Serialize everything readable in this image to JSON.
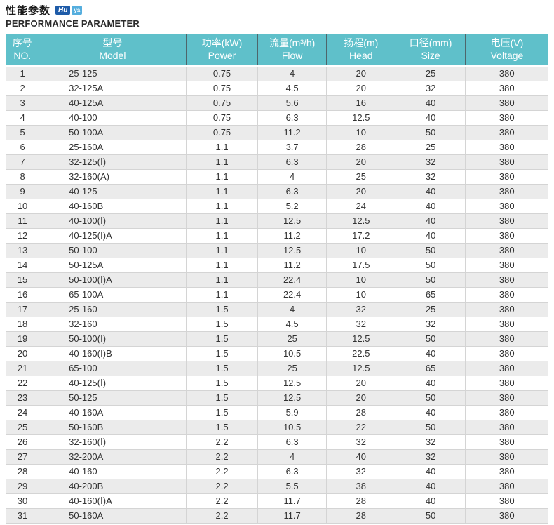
{
  "header": {
    "title_zh": "性能参数",
    "title_en": "PERFORMANCE PARAMETER",
    "logo": {
      "primary": "Hu",
      "secondary": "ya"
    }
  },
  "table": {
    "columns": [
      {
        "zh": "序号",
        "en": "NO."
      },
      {
        "zh": "型号",
        "en": "Model"
      },
      {
        "zh": "功率(kW)",
        "en": "Power"
      },
      {
        "zh": "流量(m³/h)",
        "en": "Flow"
      },
      {
        "zh": "扬程(m)",
        "en": "Head"
      },
      {
        "zh": "口径(mm)",
        "en": "Size"
      },
      {
        "zh": "电压(V)",
        "en": "Voltage"
      }
    ],
    "rows": [
      [
        "1",
        "25-125",
        "0.75",
        "4",
        "20",
        "25",
        "380"
      ],
      [
        "2",
        "32-125A",
        "0.75",
        "4.5",
        "20",
        "32",
        "380"
      ],
      [
        "3",
        "40-125A",
        "0.75",
        "5.6",
        "16",
        "40",
        "380"
      ],
      [
        "4",
        "40-100",
        "0.75",
        "6.3",
        "12.5",
        "40",
        "380"
      ],
      [
        "5",
        "50-100A",
        "0.75",
        "11.2",
        "10",
        "50",
        "380"
      ],
      [
        "6",
        "25-160A",
        "1.1",
        "3.7",
        "28",
        "25",
        "380"
      ],
      [
        "7",
        "32-125(Ⅰ)",
        "1.1",
        "6.3",
        "20",
        "32",
        "380"
      ],
      [
        "8",
        "32-160(A)",
        "1.1",
        "4",
        "25",
        "32",
        "380"
      ],
      [
        "9",
        "40-125",
        "1.1",
        "6.3",
        "20",
        "40",
        "380"
      ],
      [
        "10",
        "40-160B",
        "1.1",
        "5.2",
        "24",
        "40",
        "380"
      ],
      [
        "11",
        "40-100(Ⅰ)",
        "1.1",
        "12.5",
        "12.5",
        "40",
        "380"
      ],
      [
        "12",
        "40-125(Ⅰ)A",
        "1.1",
        "11.2",
        "17.2",
        "40",
        "380"
      ],
      [
        "13",
        "50-100",
        "1.1",
        "12.5",
        "10",
        "50",
        "380"
      ],
      [
        "14",
        "50-125A",
        "1.1",
        "11.2",
        "17.5",
        "50",
        "380"
      ],
      [
        "15",
        "50-100(Ⅰ)A",
        "1.1",
        "22.4",
        "10",
        "50",
        "380"
      ],
      [
        "16",
        "65-100A",
        "1.1",
        "22.4",
        "10",
        "65",
        "380"
      ],
      [
        "17",
        "25-160",
        "1.5",
        "4",
        "32",
        "25",
        "380"
      ],
      [
        "18",
        "32-160",
        "1.5",
        "4.5",
        "32",
        "32",
        "380"
      ],
      [
        "19",
        "50-100(Ⅰ)",
        "1.5",
        "25",
        "12.5",
        "50",
        "380"
      ],
      [
        "20",
        "40-160(Ⅰ)B",
        "1.5",
        "10.5",
        "22.5",
        "40",
        "380"
      ],
      [
        "21",
        "65-100",
        "1.5",
        "25",
        "12.5",
        "65",
        "380"
      ],
      [
        "22",
        "40-125(Ⅰ)",
        "1.5",
        "12.5",
        "20",
        "40",
        "380"
      ],
      [
        "23",
        "50-125",
        "1.5",
        "12.5",
        "20",
        "50",
        "380"
      ],
      [
        "24",
        "40-160A",
        "1.5",
        "5.9",
        "28",
        "40",
        "380"
      ],
      [
        "25",
        "50-160B",
        "1.5",
        "10.5",
        "22",
        "50",
        "380"
      ],
      [
        "26",
        "32-160(Ⅰ)",
        "2.2",
        "6.3",
        "32",
        "32",
        "380"
      ],
      [
        "27",
        "32-200A",
        "2.2",
        "4",
        "40",
        "32",
        "380"
      ],
      [
        "28",
        "40-160",
        "2.2",
        "6.3",
        "32",
        "40",
        "380"
      ],
      [
        "29",
        "40-200B",
        "2.2",
        "5.5",
        "38",
        "40",
        "380"
      ],
      [
        "30",
        "40-160(Ⅰ)A",
        "2.2",
        "11.7",
        "28",
        "40",
        "380"
      ],
      [
        "31",
        "50-160A",
        "2.2",
        "11.7",
        "28",
        "50",
        "380"
      ]
    ]
  },
  "colors": {
    "header_bg": "#5fc0ca",
    "header_text": "#ffffff",
    "header_divider": "#4e666b",
    "row_alt_bg": "#ebebeb",
    "row_bg": "#ffffff",
    "border": "#d4d4d4",
    "text": "#333333",
    "logo_primary_bg": "#1e5ba8",
    "logo_secondary_bg": "#55aede"
  }
}
